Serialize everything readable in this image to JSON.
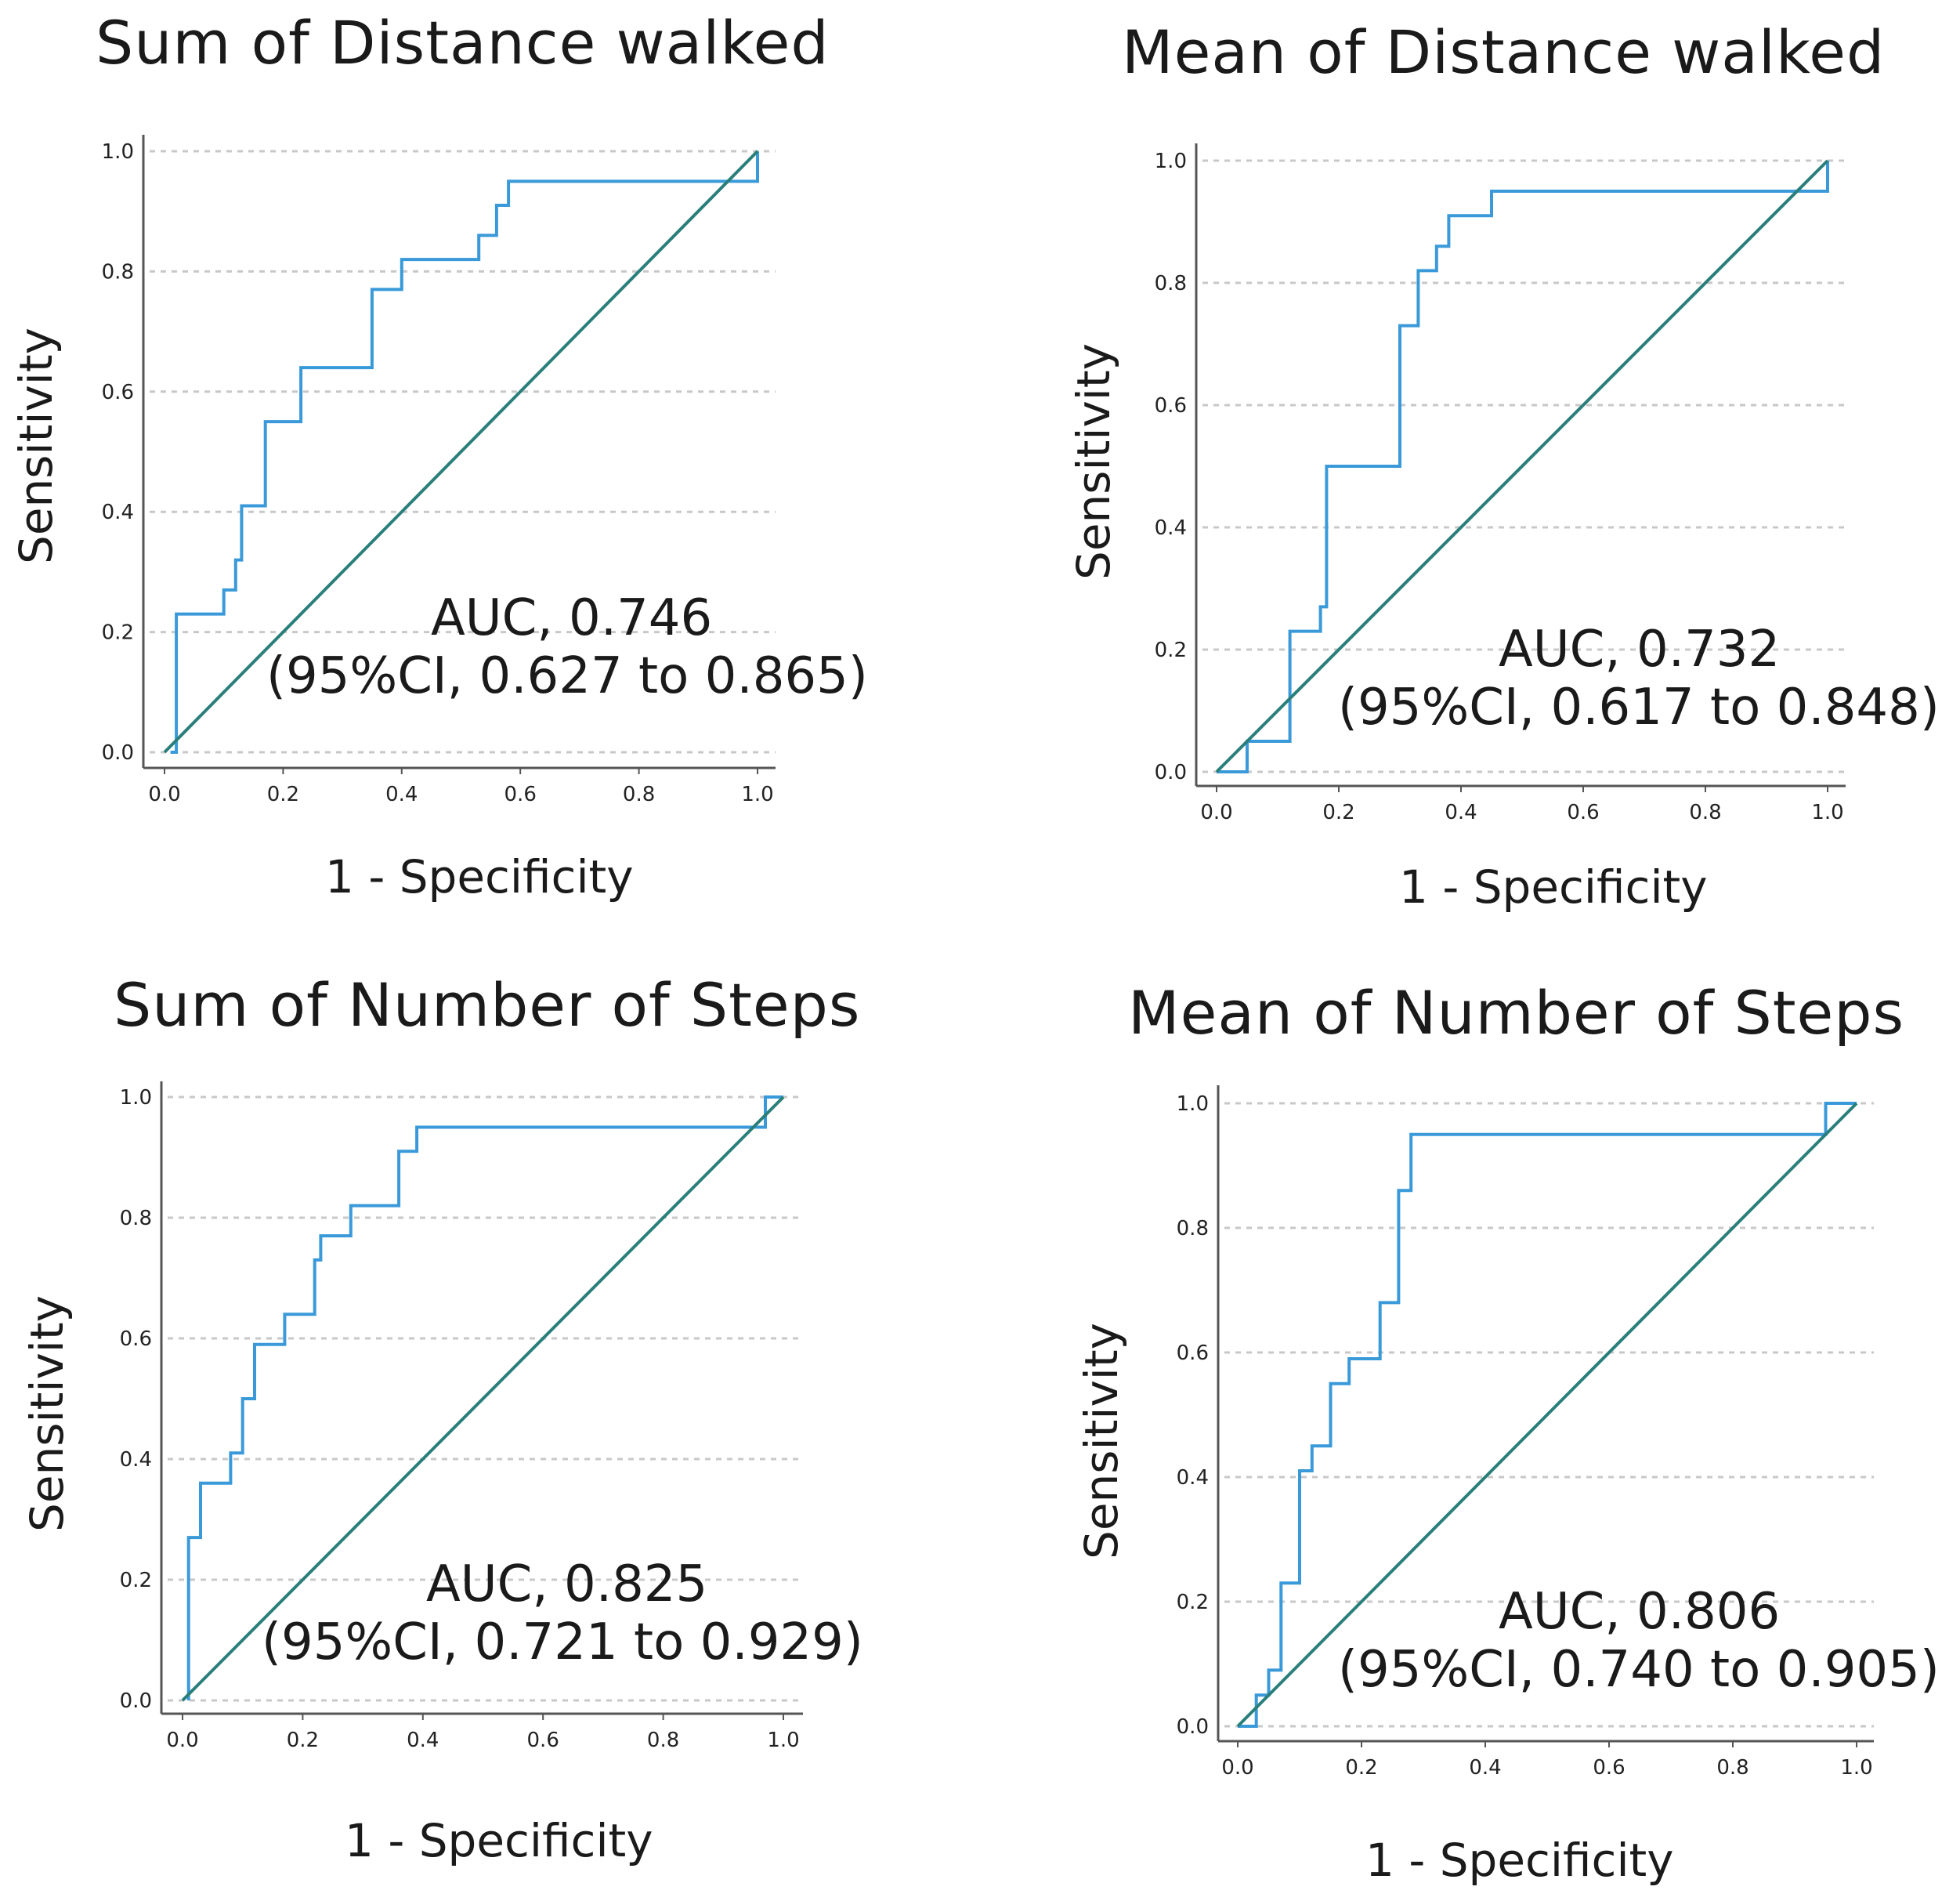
{
  "chart_data": [
    {
      "type": "line",
      "title": "Sum of Distance walked",
      "xlabel": "1 - Specificity",
      "ylabel": "Sensitivity",
      "xlim": [
        0,
        1
      ],
      "ylim": [
        0,
        1
      ],
      "xticks": [
        "0.0",
        "0.2",
        "0.4",
        "0.6",
        "0.8",
        "1.0"
      ],
      "yticks": [
        "0.0",
        "0.2",
        "0.4",
        "0.6",
        "0.8",
        "1.0"
      ],
      "grid": "horizontal-dashed",
      "auc_label": "AUC, 0.746",
      "ci_label": "(95%CI, 0.627 to 0.865)",
      "series": [
        {
          "name": "ROC",
          "color": "#3a9ad9",
          "x": [
            0.01,
            0.02,
            0.02,
            0.1,
            0.1,
            0.12,
            0.12,
            0.13,
            0.13,
            0.17,
            0.17,
            0.23,
            0.23,
            0.35,
            0.35,
            0.4,
            0.4,
            0.53,
            0.53,
            0.56,
            0.56,
            0.58,
            0.58,
            1.0,
            1.0
          ],
          "y": [
            0.0,
            0.0,
            0.23,
            0.23,
            0.27,
            0.27,
            0.32,
            0.32,
            0.41,
            0.41,
            0.55,
            0.55,
            0.64,
            0.64,
            0.77,
            0.77,
            0.82,
            0.82,
            0.86,
            0.86,
            0.91,
            0.91,
            0.95,
            0.95,
            1.0
          ]
        },
        {
          "name": "Reference",
          "color": "#2a7f7a",
          "x": [
            0,
            1
          ],
          "y": [
            0,
            1
          ]
        }
      ]
    },
    {
      "type": "line",
      "title": "Mean of Distance walked",
      "xlabel": "1 - Specificity",
      "ylabel": "Sensitivity",
      "xlim": [
        0,
        1
      ],
      "ylim": [
        0,
        1
      ],
      "xticks": [
        "0.0",
        "0.2",
        "0.4",
        "0.6",
        "0.8",
        "1.0"
      ],
      "yticks": [
        "0.0",
        "0.2",
        "0.4",
        "0.6",
        "0.8",
        "1.0"
      ],
      "grid": "horizontal-dashed",
      "auc_label": "AUC, 0.732",
      "ci_label": "(95%CI, 0.617 to 0.848)",
      "series": [
        {
          "name": "ROC",
          "color": "#3a9ad9",
          "x": [
            0.0,
            0.05,
            0.05,
            0.12,
            0.12,
            0.17,
            0.17,
            0.18,
            0.18,
            0.3,
            0.3,
            0.33,
            0.33,
            0.36,
            0.36,
            0.38,
            0.38,
            0.45,
            0.45,
            1.0,
            1.0
          ],
          "y": [
            0.0,
            0.0,
            0.05,
            0.05,
            0.23,
            0.23,
            0.27,
            0.27,
            0.5,
            0.5,
            0.73,
            0.73,
            0.82,
            0.82,
            0.86,
            0.86,
            0.91,
            0.91,
            0.95,
            0.95,
            1.0
          ]
        },
        {
          "name": "Reference",
          "color": "#2a7f7a",
          "x": [
            0,
            1
          ],
          "y": [
            0,
            1
          ]
        }
      ]
    },
    {
      "type": "line",
      "title": "Sum of Number of Steps",
      "xlabel": "1 - Specificity",
      "ylabel": "Sensitivity",
      "xlim": [
        0,
        1
      ],
      "ylim": [
        0,
        1
      ],
      "xticks": [
        "0.0",
        "0.2",
        "0.4",
        "0.6",
        "0.8",
        "1.0"
      ],
      "yticks": [
        "0.0",
        "0.2",
        "0.4",
        "0.6",
        "0.8",
        "1.0"
      ],
      "grid": "horizontal-dashed",
      "auc_label": "AUC, 0.825",
      "ci_label": "(95%CI, 0.721 to 0.929)",
      "series": [
        {
          "name": "ROC",
          "color": "#3a9ad9",
          "x": [
            0.01,
            0.01,
            0.03,
            0.03,
            0.08,
            0.08,
            0.1,
            0.1,
            0.12,
            0.12,
            0.17,
            0.17,
            0.22,
            0.22,
            0.23,
            0.23,
            0.28,
            0.28,
            0.36,
            0.36,
            0.39,
            0.39,
            0.97,
            0.97,
            1.0
          ],
          "y": [
            0.0,
            0.27,
            0.27,
            0.36,
            0.36,
            0.41,
            0.41,
            0.5,
            0.5,
            0.59,
            0.59,
            0.64,
            0.64,
            0.73,
            0.73,
            0.77,
            0.77,
            0.82,
            0.82,
            0.91,
            0.91,
            0.95,
            0.95,
            1.0,
            1.0
          ]
        },
        {
          "name": "Reference",
          "color": "#2a7f7a",
          "x": [
            0,
            1
          ],
          "y": [
            0,
            1
          ]
        }
      ]
    },
    {
      "type": "line",
      "title": "Mean of Number of Steps",
      "xlabel": "1 - Specificity",
      "ylabel": "Sensitivity",
      "xlim": [
        0,
        1
      ],
      "ylim": [
        0,
        1
      ],
      "xticks": [
        "0.0",
        "0.2",
        "0.4",
        "0.6",
        "0.8",
        "1.0"
      ],
      "yticks": [
        "0.0",
        "0.2",
        "0.4",
        "0.6",
        "0.8",
        "1.0"
      ],
      "grid": "horizontal-dashed",
      "auc_label": "AUC, 0.806",
      "ci_label": "(95%CI, 0.740 to 0.905)",
      "series": [
        {
          "name": "ROC",
          "color": "#3a9ad9",
          "x": [
            0.0,
            0.03,
            0.03,
            0.05,
            0.05,
            0.07,
            0.07,
            0.1,
            0.1,
            0.12,
            0.12,
            0.15,
            0.15,
            0.18,
            0.18,
            0.23,
            0.23,
            0.26,
            0.26,
            0.28,
            0.28,
            0.95,
            0.95,
            1.0
          ],
          "y": [
            0.0,
            0.0,
            0.05,
            0.05,
            0.09,
            0.09,
            0.23,
            0.23,
            0.41,
            0.41,
            0.45,
            0.45,
            0.55,
            0.55,
            0.59,
            0.59,
            0.68,
            0.68,
            0.86,
            0.86,
            0.95,
            0.95,
            1.0,
            1.0
          ]
        },
        {
          "name": "Reference",
          "color": "#2a7f7a",
          "x": [
            0,
            1
          ],
          "y": [
            0,
            1
          ]
        }
      ]
    }
  ]
}
